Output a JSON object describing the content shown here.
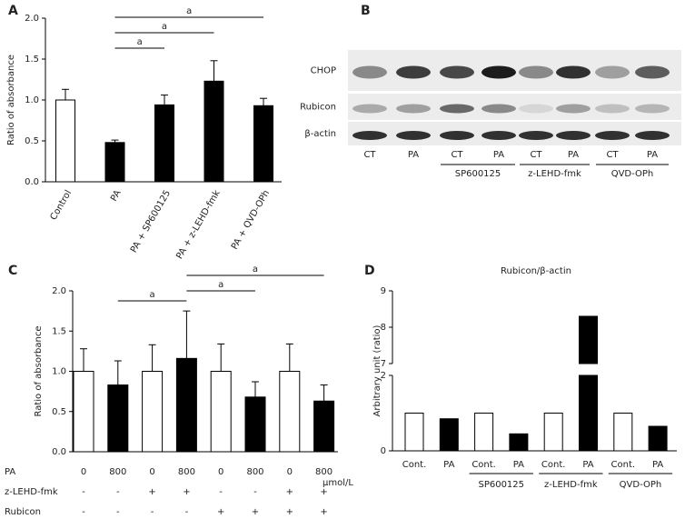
{
  "chart_data": [
    {
      "type": "bar",
      "panel": "A",
      "ylabel": "Ratio of absorbance",
      "categories": [
        "Control",
        "PA",
        "PA + SP600125",
        "PA + z-LEHD-fmk",
        "PA + QVD-OPh"
      ],
      "values": [
        1.0,
        0.48,
        0.94,
        1.23,
        0.93
      ],
      "errors": [
        0.13,
        0.03,
        0.12,
        0.25,
        0.09
      ],
      "colors": [
        "#ffffff",
        "#000000",
        "#000000",
        "#000000",
        "#000000"
      ],
      "ylim": [
        0,
        2
      ],
      "yticks": [
        {
          "value": 0,
          "label": "0.0"
        },
        {
          "value": 0.5,
          "label": "0.5"
        },
        {
          "value": 1,
          "label": "1.0"
        },
        {
          "value": 1.5,
          "label": "1.5"
        },
        {
          "value": 2,
          "label": "2.0"
        }
      ],
      "significance": [
        {
          "bars": [
            1,
            2
          ],
          "label": "a"
        },
        {
          "bars": [
            1,
            3
          ],
          "label": "a"
        },
        {
          "bars": [
            1,
            4
          ],
          "label": "a"
        }
      ]
    },
    {
      "type": "bar",
      "panel": "C",
      "ylabel": "Ratio of absorbance",
      "categories": [
        null,
        null,
        null,
        null,
        null,
        null,
        null,
        null
      ],
      "values": [
        1.0,
        0.83,
        1.0,
        1.16,
        1.0,
        0.68,
        1.0,
        0.63
      ],
      "errors": [
        0.28,
        0.3,
        0.33,
        0.59,
        0.34,
        0.19,
        0.34,
        0.2
      ],
      "colors": [
        "#ffffff",
        "#000000",
        "#ffffff",
        "#000000",
        "#ffffff",
        "#000000",
        "#ffffff",
        "#000000"
      ],
      "ylim": [
        0,
        2
      ],
      "yticks": [
        {
          "value": 0,
          "label": "0.0"
        },
        {
          "value": 0.5,
          "label": "0.5"
        },
        {
          "value": 1,
          "label": "1.0"
        },
        {
          "value": 1.5,
          "label": "1.5"
        },
        {
          "value": 2,
          "label": "2.0"
        }
      ],
      "significance": [
        {
          "bars": [
            1,
            3
          ],
          "label": "a"
        },
        {
          "bars": [
            3,
            5
          ],
          "label": "a"
        },
        {
          "bars": [
            3,
            7
          ],
          "label": "a"
        }
      ],
      "conditions": [
        {
          "label": "PA",
          "values": [
            0,
            800,
            0,
            800,
            0,
            800,
            0,
            800
          ]
        },
        {
          "label": "z-LEHD-fmk",
          "values": [
            "-",
            "-",
            "+",
            "+",
            "-",
            "-",
            "+",
            "+"
          ]
        },
        {
          "label": "Rubicon",
          "values": [
            "-",
            "-",
            "-",
            "-",
            "+",
            "+",
            "+",
            "+"
          ]
        }
      ],
      "condition_unit": "µmol/L"
    },
    {
      "type": "bar",
      "panel": "D",
      "title": "Rubicon/β-actin",
      "ylabel": "Arbitrary unit (ratio)",
      "categories": [
        "Cont.",
        "PA",
        "Cont.",
        "PA",
        "Cont.",
        "PA",
        "Cont.",
        "PA"
      ],
      "groups": [
        {
          "label": "SP600125",
          "bars": [
            2,
            3
          ]
        },
        {
          "label": "z-LEHD-fmk",
          "bars": [
            4,
            5
          ]
        },
        {
          "label": "QVD-OPh",
          "bars": [
            6,
            7
          ]
        }
      ],
      "values": [
        1.0,
        0.85,
        1.0,
        0.45,
        1.0,
        8.3,
        1.0,
        0.65
      ],
      "colors": [
        "#ffffff",
        "#000000",
        "#ffffff",
        "#000000",
        "#ffffff",
        "#000000",
        "#ffffff",
        "#000000"
      ],
      "y_segments": [
        {
          "ylim": [
            0,
            2
          ],
          "yticks": [
            0,
            2
          ]
        },
        {
          "ylim": [
            7,
            9
          ],
          "yticks": [
            7,
            8,
            9
          ]
        }
      ]
    }
  ],
  "blot": {
    "panel": "B",
    "rows": [
      "CHOP",
      "Rubicon",
      "β-actin"
    ],
    "lanes": [
      "CT",
      "PA",
      "CT",
      "PA",
      "CT",
      "PA",
      "CT",
      "PA"
    ],
    "groups": [
      {
        "label": "SP600125",
        "lanes": [
          2,
          3
        ]
      },
      {
        "label": "z-LEHD-fmk",
        "lanes": [
          4,
          5
        ]
      },
      {
        "label": "QVD-OPh",
        "lanes": [
          6,
          7
        ]
      }
    ]
  }
}
